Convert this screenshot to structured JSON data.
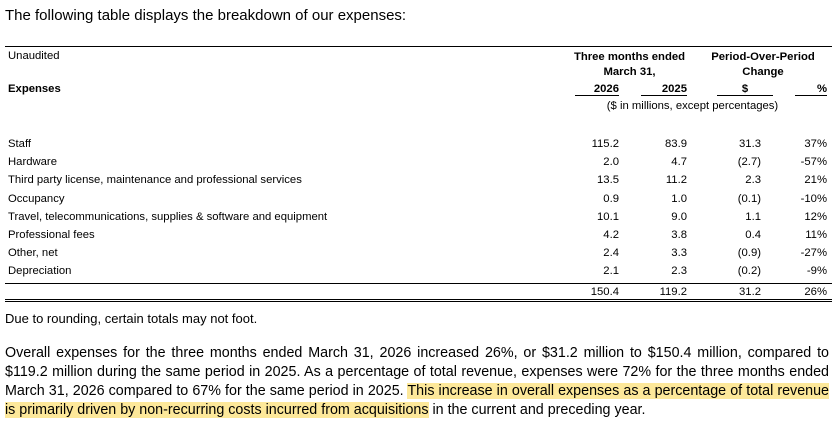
{
  "intro": "The following table displays the breakdown of our expenses:",
  "table": {
    "unaudited": "Unaudited",
    "period_header": "Three months ended March 31,",
    "change_header": "Period-Over-Period Change",
    "col_expenses": "Expenses",
    "col_2026": "2026",
    "col_2025": "2025",
    "col_dollar": "$",
    "col_pct": "%",
    "units": "($ in millions, except percentages)",
    "rows": [
      {
        "label": "Staff",
        "v2026": "115.2",
        "v2025": "83.9",
        "chg": "31.3",
        "pct": "37%"
      },
      {
        "label": "Hardware",
        "v2026": "2.0",
        "v2025": "4.7",
        "chg": "(2.7)",
        "pct": "-57%"
      },
      {
        "label": "Third party license, maintenance and professional services",
        "v2026": "13.5",
        "v2025": "11.2",
        "chg": "2.3",
        "pct": "21%"
      },
      {
        "label": "Occupancy",
        "v2026": "0.9",
        "v2025": "1.0",
        "chg": "(0.1)",
        "pct": "-10%"
      },
      {
        "label": "Travel, telecommunications, supplies & software and equipment",
        "v2026": "10.1",
        "v2025": "9.0",
        "chg": "1.1",
        "pct": "12%"
      },
      {
        "label": "Professional fees",
        "v2026": "4.2",
        "v2025": "3.8",
        "chg": "0.4",
        "pct": "11%"
      },
      {
        "label": "Other, net",
        "v2026": "2.4",
        "v2025": "3.3",
        "chg": "(0.9)",
        "pct": "-27%"
      },
      {
        "label": "Depreciation",
        "v2026": "2.1",
        "v2025": "2.3",
        "chg": "(0.2)",
        "pct": "-9%"
      }
    ],
    "total": {
      "v2026": "150.4",
      "v2025": "119.2",
      "chg": "31.2",
      "pct": "26%"
    }
  },
  "note": "Due to rounding, certain totals may not foot.",
  "paragraph": {
    "part1": "Overall expenses for the three months ended March 31, 2026 increased 26%, or $31.2 million to $150.4 million, compared to $119.2 million during the same period in 2025. As a percentage of total revenue, expenses were 72% for the three months ended March 31, 2026 compared to 67% for the same period in 2025. ",
    "highlight": "This increase in overall expenses as a percentage of total revenue is primarily driven by non-recurring costs incurred from acquisitions",
    "part2": " in the current and preceding year."
  },
  "colors": {
    "highlight": "#fde89a"
  }
}
